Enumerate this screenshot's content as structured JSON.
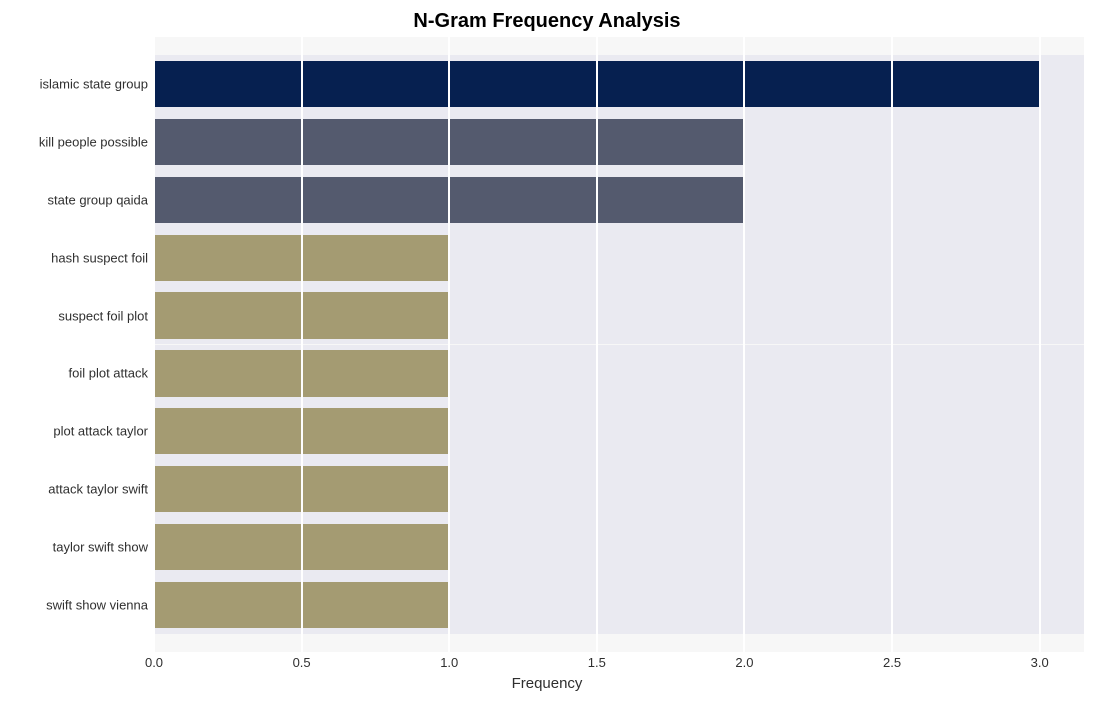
{
  "chart": {
    "type": "bar-horizontal",
    "title": "N-Gram Frequency Analysis",
    "title_fontsize": 20,
    "title_fontweight": "bold",
    "title_color": "#000000",
    "x_axis": {
      "label": "Frequency",
      "label_fontsize": 15,
      "min": 0.0,
      "max_display": 3.15,
      "ticks": [
        0.0,
        0.5,
        1.0,
        1.5,
        2.0,
        2.5,
        3.0
      ],
      "tick_labels": [
        "0.0",
        "0.5",
        "1.0",
        "1.5",
        "2.0",
        "2.5",
        "3.0"
      ]
    },
    "categories": [
      "islamic state group",
      "kill people possible",
      "state group qaida",
      "hash suspect foil",
      "suspect foil plot",
      "foil plot attack",
      "plot attack taylor",
      "attack taylor swift",
      "taylor swift show",
      "swift show vienna"
    ],
    "values": [
      3,
      2,
      2,
      1,
      1,
      1,
      1,
      1,
      1,
      1
    ],
    "bar_colors": [
      "#062050",
      "#545a6e",
      "#545a6e",
      "#a49b72",
      "#a49b72",
      "#a49b72",
      "#a49b72",
      "#a49b72",
      "#a49b72",
      "#a49b72"
    ],
    "bar_height_ratio": 0.8,
    "plot_background": "#f7f7f7",
    "row_band_color": "#eaeaf1",
    "grid_color": "#ffffff",
    "figure_background": "#ffffff",
    "y_tick_fontsize": 13,
    "x_tick_fontsize": 13,
    "axis_text_color": "#2f2f2f"
  }
}
